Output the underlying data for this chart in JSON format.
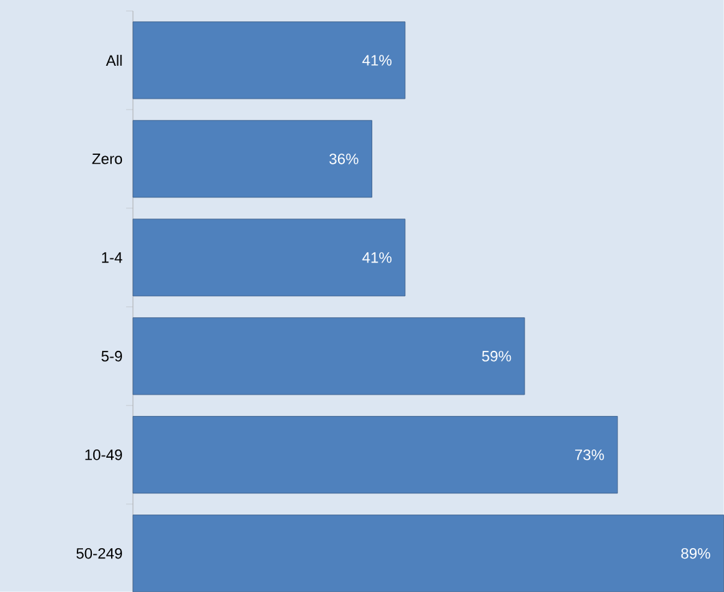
{
  "chart_data": {
    "type": "bar",
    "orientation": "horizontal",
    "categories": [
      "All",
      "Zero",
      "1-4",
      "5-9",
      "10-49",
      "50-249"
    ],
    "values": [
      41,
      36,
      41,
      59,
      73,
      89
    ],
    "value_labels": [
      "41%",
      "36%",
      "41%",
      "59%",
      "73%",
      "89%"
    ],
    "color": "#4f81bd"
  }
}
